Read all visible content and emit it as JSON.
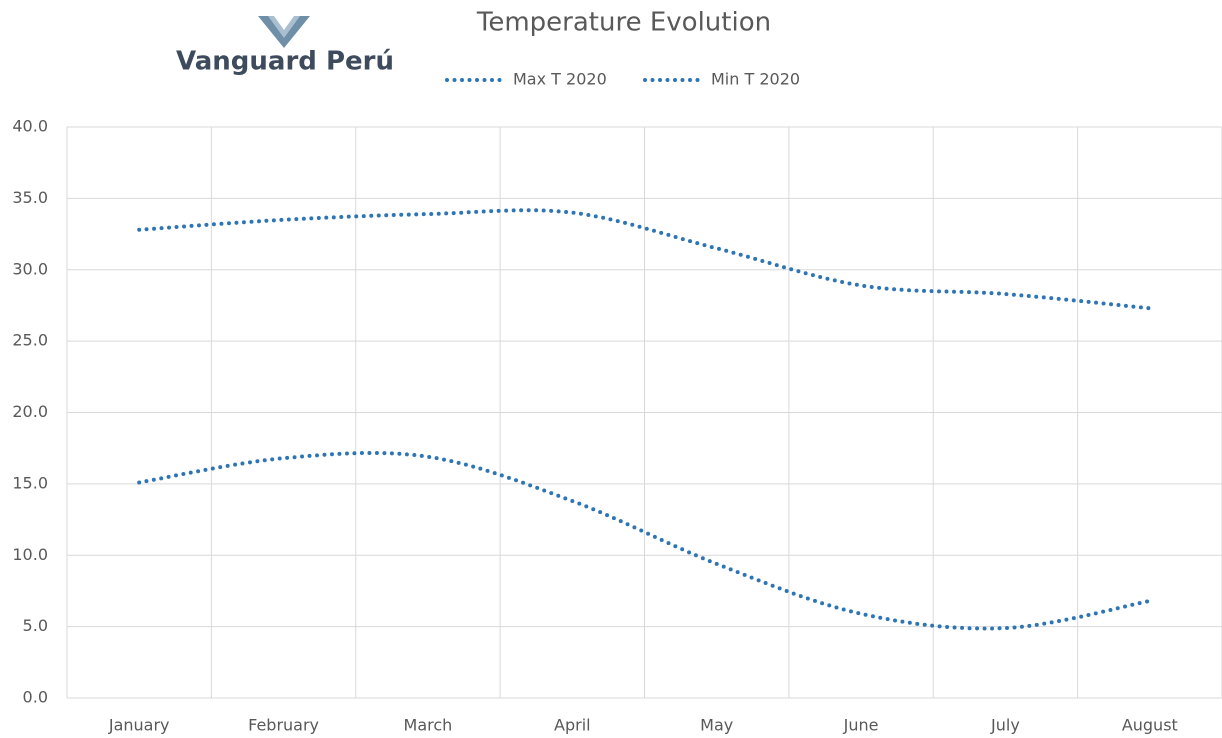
{
  "chart_data": {
    "type": "line",
    "title": "Temperature Evolution",
    "logo_text": "Vanguard Perú",
    "categories": [
      "January",
      "February",
      "March",
      "April",
      "May",
      "June",
      "July",
      "August"
    ],
    "series": [
      {
        "name": "Max T 2020",
        "color": "#2e75b6",
        "values": [
          32.8,
          33.5,
          33.9,
          34.0,
          31.5,
          28.9,
          28.3,
          27.3
        ]
      },
      {
        "name": "Min T 2020",
        "color": "#2e75b6",
        "values": [
          15.1,
          16.8,
          16.9,
          13.8,
          9.4,
          5.9,
          4.9,
          6.8
        ]
      }
    ],
    "ylim": [
      0,
      40
    ],
    "yticks": [
      {
        "value": 0,
        "label": "0.0"
      },
      {
        "value": 5,
        "label": "5.0"
      },
      {
        "value": 10,
        "label": "10.0"
      },
      {
        "value": 15,
        "label": "15.0"
      },
      {
        "value": 20,
        "label": "20.0"
      },
      {
        "value": 25,
        "label": "25.0"
      },
      {
        "value": 30,
        "label": "30.0"
      },
      {
        "value": 35,
        "label": "35.0"
      },
      {
        "value": 40,
        "label": "40.0"
      }
    ],
    "grid": true,
    "legend": "top"
  }
}
